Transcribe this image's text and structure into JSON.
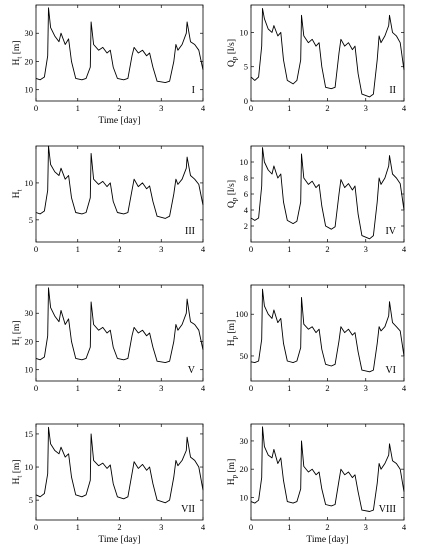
{
  "chart_data": [
    {
      "type": "line",
      "panel": "I",
      "xlabel": "Time [day]",
      "ylabel_main": "H",
      "ylabel_sub": "t",
      "ylabel_unit": "[m]",
      "xlim": [
        0,
        4
      ],
      "ylim": [
        6,
        40
      ],
      "xticks": [
        "0",
        "1",
        "2",
        "3",
        "4"
      ],
      "yticks": [
        {
          "v": 10,
          "t": "10"
        },
        {
          "v": 20,
          "t": "20"
        },
        {
          "v": 30,
          "t": "30"
        }
      ],
      "series": [
        {
          "x": [
            0,
            0.1,
            0.2,
            0.28,
            0.3,
            0.35,
            0.45,
            0.55,
            0.6,
            0.7,
            0.78,
            0.85,
            0.95,
            1.1,
            1.2,
            1.3,
            1.32,
            1.38,
            1.5,
            1.6,
            1.7,
            1.78,
            1.85,
            1.95,
            2.1,
            2.2,
            2.3,
            2.35,
            2.45,
            2.55,
            2.65,
            2.72,
            2.8,
            2.9,
            3.1,
            3.2,
            3.3,
            3.35,
            3.4,
            3.5,
            3.6,
            3.62,
            3.7,
            3.8,
            3.9,
            4.0
          ],
          "y": [
            14,
            13.5,
            14.5,
            22,
            39,
            32,
            29,
            27,
            30,
            26,
            28,
            20,
            14,
            13.5,
            14,
            18,
            34,
            26,
            24,
            25,
            23,
            24,
            18,
            14,
            13.5,
            14,
            22,
            25,
            23,
            24,
            22,
            23,
            18,
            13,
            12.5,
            13,
            20,
            26,
            24,
            26,
            30,
            34,
            27,
            26,
            24,
            17
          ]
        }
      ]
    },
    {
      "type": "line",
      "panel": "II",
      "xlabel": "",
      "ylabel_main": "Q",
      "ylabel_sub": "p",
      "ylabel_unit": "[l/s]",
      "xlim": [
        0,
        4
      ],
      "ylim": [
        0,
        14
      ],
      "xticks": [
        "0",
        "1",
        "2",
        "3",
        "4"
      ],
      "yticks": [
        {
          "v": 0,
          "t": "0"
        },
        {
          "v": 5,
          "t": "5"
        },
        {
          "v": 10,
          "t": "10"
        }
      ],
      "series": [
        {
          "x": [
            0,
            0.1,
            0.2,
            0.28,
            0.3,
            0.35,
            0.45,
            0.55,
            0.6,
            0.7,
            0.78,
            0.85,
            0.95,
            1.1,
            1.2,
            1.3,
            1.32,
            1.38,
            1.5,
            1.6,
            1.7,
            1.78,
            1.85,
            1.95,
            2.1,
            2.2,
            2.3,
            2.35,
            2.45,
            2.55,
            2.65,
            2.72,
            2.8,
            2.9,
            3.1,
            3.2,
            3.3,
            3.35,
            3.4,
            3.5,
            3.6,
            3.62,
            3.7,
            3.8,
            3.9,
            4.0
          ],
          "y": [
            3.5,
            3,
            3.5,
            8,
            13.5,
            12,
            10.5,
            10,
            11,
            9.5,
            10,
            6,
            3,
            2.5,
            3,
            6,
            12.5,
            9.5,
            8.5,
            9,
            8,
            8.5,
            5,
            2,
            1.8,
            2,
            7,
            9,
            8,
            8.5,
            7.5,
            8,
            4,
            1,
            0.6,
            1,
            6,
            9.5,
            8.5,
            9.5,
            11,
            12.5,
            10,
            9.5,
            8.5,
            4.5
          ]
        }
      ]
    },
    {
      "type": "line",
      "panel": "III",
      "xlabel": "",
      "ylabel_main": "H",
      "ylabel_sub": "t",
      "ylabel_unit": "",
      "xlim": [
        0,
        4
      ],
      "ylim": [
        2,
        15
      ],
      "xticks": [
        "0",
        "1",
        "2",
        "3",
        "4"
      ],
      "yticks": [
        {
          "v": 5,
          "t": "5"
        },
        {
          "v": 10,
          "t": "10"
        }
      ],
      "series": [
        {
          "x": [
            0,
            0.1,
            0.2,
            0.28,
            0.3,
            0.35,
            0.45,
            0.55,
            0.6,
            0.7,
            0.78,
            0.85,
            0.95,
            1.1,
            1.2,
            1.3,
            1.32,
            1.38,
            1.5,
            1.6,
            1.7,
            1.78,
            1.85,
            1.95,
            2.1,
            2.2,
            2.3,
            2.35,
            2.45,
            2.55,
            2.65,
            2.72,
            2.8,
            2.9,
            3.1,
            3.2,
            3.3,
            3.35,
            3.4,
            3.5,
            3.6,
            3.62,
            3.7,
            3.8,
            3.9,
            4.0
          ],
          "y": [
            6,
            5.8,
            6.2,
            9,
            15,
            12.5,
            11.5,
            11,
            12,
            10.5,
            11,
            8,
            6,
            5.8,
            6,
            8,
            14,
            10.5,
            9.8,
            10.2,
            9.5,
            10,
            7.5,
            6,
            5.8,
            6,
            9,
            10.5,
            9.5,
            10,
            9.2,
            9.6,
            7.5,
            5.5,
            5.2,
            5.5,
            8.5,
            10.5,
            9.8,
            10.5,
            12,
            13.5,
            11,
            10.5,
            9.8,
            7
          ]
        }
      ]
    },
    {
      "type": "line",
      "panel": "IV",
      "xlabel": "",
      "ylabel_main": "Q",
      "ylabel_sub": "p",
      "ylabel_unit": "[l/s]",
      "xlim": [
        0,
        4
      ],
      "ylim": [
        0,
        12
      ],
      "xticks": [
        "0",
        "1",
        "2",
        "3",
        "4"
      ],
      "yticks": [
        {
          "v": 2,
          "t": "2"
        },
        {
          "v": 4,
          "t": "4"
        },
        {
          "v": 6,
          "t": "6"
        },
        {
          "v": 8,
          "t": "8"
        },
        {
          "v": 10,
          "t": "10"
        }
      ],
      "series": [
        {
          "x": [
            0,
            0.1,
            0.2,
            0.28,
            0.3,
            0.35,
            0.45,
            0.55,
            0.6,
            0.7,
            0.78,
            0.85,
            0.95,
            1.1,
            1.2,
            1.3,
            1.32,
            1.38,
            1.5,
            1.6,
            1.7,
            1.78,
            1.85,
            1.95,
            2.1,
            2.2,
            2.3,
            2.35,
            2.45,
            2.55,
            2.65,
            2.72,
            2.8,
            2.9,
            3.1,
            3.2,
            3.3,
            3.35,
            3.4,
            3.5,
            3.6,
            3.62,
            3.7,
            3.8,
            3.9,
            4.0
          ],
          "y": [
            3,
            2.7,
            3,
            7,
            11.8,
            10,
            9,
            8.5,
            9.5,
            8,
            8.5,
            5,
            2.7,
            2.3,
            2.6,
            5,
            11,
            8,
            7.2,
            7.6,
            6.8,
            7.2,
            4.5,
            2,
            1.6,
            1.9,
            6,
            7.8,
            6.8,
            7.3,
            6.5,
            7,
            3.5,
            0.8,
            0.4,
            0.8,
            5,
            8,
            7.2,
            8,
            9.5,
            10.8,
            8.5,
            8,
            7.3,
            4
          ]
        }
      ]
    },
    {
      "type": "line",
      "panel": "V",
      "xlabel": "",
      "ylabel_main": "H",
      "ylabel_sub": "t",
      "ylabel_unit": "[m]",
      "xlim": [
        0,
        4
      ],
      "ylim": [
        6,
        40
      ],
      "xticks": [
        "0",
        "1",
        "2",
        "3",
        "4"
      ],
      "yticks": [
        {
          "v": 10,
          "t": "10"
        },
        {
          "v": 20,
          "t": "20"
        },
        {
          "v": 30,
          "t": "30"
        }
      ],
      "series": [
        {
          "x": [
            0,
            0.1,
            0.2,
            0.28,
            0.3,
            0.35,
            0.45,
            0.55,
            0.6,
            0.7,
            0.78,
            0.85,
            0.95,
            1.1,
            1.2,
            1.3,
            1.32,
            1.38,
            1.5,
            1.6,
            1.7,
            1.78,
            1.85,
            1.95,
            2.1,
            2.2,
            2.3,
            2.35,
            2.45,
            2.55,
            2.65,
            2.72,
            2.8,
            2.9,
            3.1,
            3.2,
            3.3,
            3.35,
            3.4,
            3.5,
            3.6,
            3.62,
            3.7,
            3.8,
            3.9,
            4.0
          ],
          "y": [
            14,
            13.5,
            14.5,
            22,
            39,
            32,
            29,
            27,
            31,
            26,
            28,
            20,
            14,
            13.5,
            14,
            18,
            34,
            26,
            24,
            25,
            23,
            24,
            18,
            14,
            13.5,
            14,
            22,
            25,
            23,
            24,
            22,
            23,
            18,
            13,
            12.5,
            13,
            20,
            26,
            24,
            26,
            30,
            35,
            27,
            26,
            24,
            17
          ]
        }
      ]
    },
    {
      "type": "line",
      "panel": "VI",
      "xlabel": "",
      "ylabel_main": "H",
      "ylabel_sub": "p",
      "ylabel_unit": "[m]",
      "xlim": [
        0,
        4
      ],
      "ylim": [
        20,
        135
      ],
      "xticks": [
        "0",
        "1",
        "2",
        "3",
        "4"
      ],
      "yticks": [
        {
          "v": 50,
          "t": "50"
        },
        {
          "v": 100,
          "t": "100"
        }
      ],
      "series": [
        {
          "x": [
            0,
            0.1,
            0.2,
            0.28,
            0.3,
            0.35,
            0.45,
            0.55,
            0.6,
            0.7,
            0.78,
            0.85,
            0.95,
            1.1,
            1.2,
            1.3,
            1.32,
            1.38,
            1.5,
            1.6,
            1.7,
            1.78,
            1.85,
            1.95,
            2.1,
            2.2,
            2.3,
            2.35,
            2.45,
            2.55,
            2.65,
            2.72,
            2.8,
            2.9,
            3.1,
            3.2,
            3.3,
            3.35,
            3.4,
            3.5,
            3.6,
            3.62,
            3.7,
            3.8,
            3.9,
            4.0
          ],
          "y": [
            43,
            42,
            44,
            70,
            130,
            110,
            100,
            95,
            105,
            90,
            95,
            65,
            44,
            42,
            44,
            60,
            120,
            88,
            82,
            85,
            78,
            82,
            58,
            40,
            38,
            40,
            68,
            85,
            78,
            82,
            75,
            78,
            55,
            33,
            31,
            33,
            65,
            85,
            80,
            85,
            98,
            115,
            90,
            85,
            80,
            50
          ]
        }
      ]
    },
    {
      "type": "line",
      "panel": "VII",
      "xlabel": "Time [day]",
      "ylabel_main": "H",
      "ylabel_sub": "t",
      "ylabel_unit": "[m]",
      "xlim": [
        0,
        4
      ],
      "ylim": [
        2,
        16.5
      ],
      "xticks": [
        "0",
        "1",
        "2",
        "3",
        "4"
      ],
      "yticks": [
        {
          "v": 5,
          "t": "5"
        },
        {
          "v": 10,
          "t": "10"
        },
        {
          "v": 15,
          "t": "15"
        }
      ],
      "series": [
        {
          "x": [
            0,
            0.1,
            0.2,
            0.28,
            0.3,
            0.35,
            0.45,
            0.55,
            0.6,
            0.7,
            0.78,
            0.85,
            0.95,
            1.1,
            1.2,
            1.3,
            1.32,
            1.38,
            1.5,
            1.6,
            1.7,
            1.78,
            1.85,
            1.95,
            2.1,
            2.2,
            2.3,
            2.35,
            2.45,
            2.55,
            2.65,
            2.72,
            2.8,
            2.9,
            3.1,
            3.2,
            3.3,
            3.35,
            3.4,
            3.5,
            3.6,
            3.62,
            3.7,
            3.8,
            3.9,
            4.0
          ],
          "y": [
            5.8,
            5.5,
            6,
            9,
            16,
            13.5,
            12.5,
            12,
            13,
            11.5,
            12,
            8.5,
            5.8,
            5.5,
            5.8,
            8,
            15,
            11,
            10.2,
            10.6,
            9.8,
            10.3,
            7.5,
            5.5,
            5.2,
            5.5,
            9,
            10.8,
            9.8,
            10.4,
            9.5,
            10,
            7.5,
            5,
            4.6,
            5,
            8.5,
            11,
            10.2,
            11,
            12.5,
            14.5,
            11.5,
            11,
            10,
            6.5
          ]
        }
      ]
    },
    {
      "type": "line",
      "panel": "VIII",
      "xlabel": "Time [day]",
      "ylabel_main": "H",
      "ylabel_sub": "p",
      "ylabel_unit": "[m]",
      "xlim": [
        0,
        4
      ],
      "ylim": [
        2,
        36
      ],
      "xticks": [
        "0",
        "1",
        "2",
        "3",
        "4"
      ],
      "yticks": [
        {
          "v": 10,
          "t": "10"
        },
        {
          "v": 20,
          "t": "20"
        },
        {
          "v": 30,
          "t": "30"
        }
      ],
      "series": [
        {
          "x": [
            0,
            0.1,
            0.2,
            0.28,
            0.3,
            0.35,
            0.45,
            0.55,
            0.6,
            0.7,
            0.78,
            0.85,
            0.95,
            1.1,
            1.2,
            1.3,
            1.32,
            1.38,
            1.5,
            1.6,
            1.7,
            1.78,
            1.85,
            1.95,
            2.1,
            2.2,
            2.3,
            2.35,
            2.45,
            2.55,
            2.65,
            2.72,
            2.8,
            2.9,
            3.1,
            3.2,
            3.3,
            3.35,
            3.4,
            3.5,
            3.6,
            3.62,
            3.7,
            3.8,
            3.9,
            4.0
          ],
          "y": [
            8.5,
            8,
            9,
            17,
            35,
            28,
            25,
            24,
            27,
            22,
            24,
            16,
            8.5,
            8,
            8.5,
            13,
            30,
            21,
            19,
            20,
            18,
            19,
            13,
            7.5,
            7,
            7.5,
            16,
            20,
            18,
            19,
            17,
            18,
            12,
            5.5,
            5,
            5.5,
            15,
            22,
            20,
            22,
            25,
            29,
            23,
            22,
            20,
            12
          ]
        }
      ]
    }
  ]
}
